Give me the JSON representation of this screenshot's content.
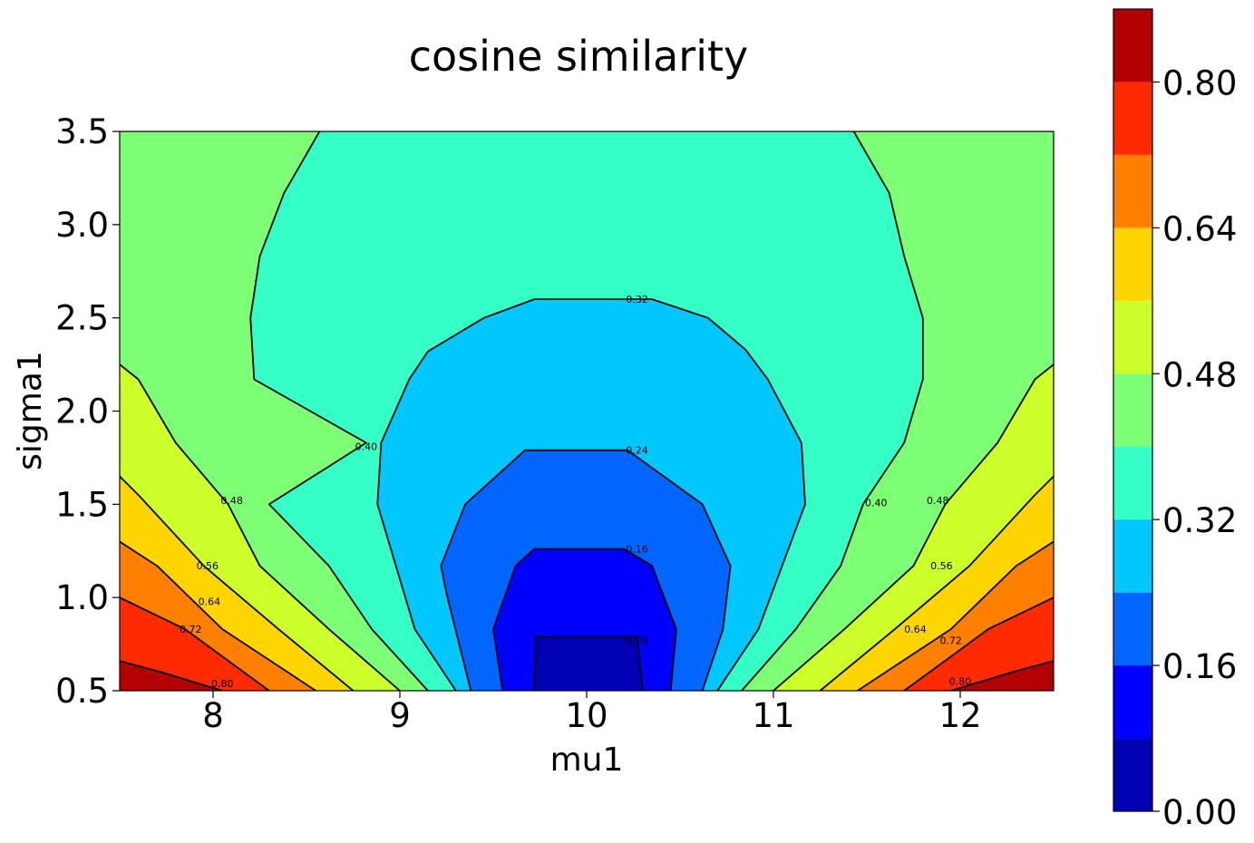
{
  "chart_data": {
    "type": "contourf",
    "title": "cosine similarity",
    "xlabel": "mu1",
    "ylabel": "sigma1",
    "xlim": [
      7.5,
      12.5
    ],
    "ylim": [
      0.5,
      3.5
    ],
    "x_ticks": [
      "8",
      "9",
      "10",
      "11",
      "12"
    ],
    "y_ticks": [
      "0.5",
      "1.0",
      "1.5",
      "2.0",
      "2.5",
      "3.0",
      "3.5"
    ],
    "levels": [
      0.0,
      0.08,
      0.16,
      0.24,
      0.32,
      0.4,
      0.48,
      0.56,
      0.64,
      0.72,
      0.8,
      0.88
    ],
    "level_colors": [
      "#0000b3",
      "#0000ff",
      "#0066ff",
      "#00c8ff",
      "#33ffc7",
      "#7cff74",
      "#ccff2a",
      "#ffd500",
      "#ff7f00",
      "#ff2a00",
      "#b30000"
    ],
    "colorbar_ticks": [
      "0.00",
      "0.16",
      "0.32",
      "0.48",
      "0.64",
      "0.80"
    ],
    "contour_labels": [
      {
        "text": "0.32",
        "x": 10.27,
        "y": 2.6
      },
      {
        "text": "0.24",
        "x": 10.27,
        "y": 1.79
      },
      {
        "text": "0.16",
        "x": 10.27,
        "y": 1.26
      },
      {
        "text": "0.08",
        "x": 10.27,
        "y": 0.77
      },
      {
        "text": "0.40",
        "x": 8.82,
        "y": 1.81
      },
      {
        "text": "0.48",
        "x": 8.1,
        "y": 1.52
      },
      {
        "text": "0.56",
        "x": 7.97,
        "y": 1.17
      },
      {
        "text": "0.64",
        "x": 7.98,
        "y": 0.98
      },
      {
        "text": "0.72",
        "x": 7.88,
        "y": 0.83
      },
      {
        "text": "0.80",
        "x": 8.05,
        "y": 0.54
      },
      {
        "text": "0.40",
        "x": 11.55,
        "y": 1.51
      },
      {
        "text": "0.48",
        "x": 11.88,
        "y": 1.52
      },
      {
        "text": "0.56",
        "x": 11.9,
        "y": 1.17
      },
      {
        "text": "0.64",
        "x": 11.76,
        "y": 0.83
      },
      {
        "text": "0.72",
        "x": 11.95,
        "y": 0.77
      },
      {
        "text": "0.80",
        "x": 12.0,
        "y": 0.55
      }
    ],
    "contours": [
      {
        "level": 0.08,
        "points": [
          [
            9.72,
            0.5
          ],
          [
            9.73,
            0.79
          ],
          [
            10.27,
            0.79
          ],
          [
            10.3,
            0.5
          ]
        ]
      },
      {
        "level": 0.16,
        "points": [
          [
            9.55,
            0.5
          ],
          [
            9.5,
            0.83
          ],
          [
            9.62,
            1.17
          ],
          [
            9.72,
            1.26
          ],
          [
            10.2,
            1.26
          ],
          [
            10.35,
            1.17
          ],
          [
            10.48,
            0.83
          ],
          [
            10.45,
            0.5
          ]
        ]
      },
      {
        "level": 0.24,
        "points": [
          [
            9.38,
            0.5
          ],
          [
            9.25,
            1.02
          ],
          [
            9.22,
            1.17
          ],
          [
            9.35,
            1.5
          ],
          [
            9.67,
            1.79
          ],
          [
            10.22,
            1.79
          ],
          [
            10.62,
            1.5
          ],
          [
            10.77,
            1.17
          ],
          [
            10.73,
            0.83
          ],
          [
            10.62,
            0.5
          ]
        ]
      },
      {
        "level": 0.32,
        "points": [
          [
            9.3,
            0.5
          ],
          [
            9.08,
            0.83
          ],
          [
            8.88,
            1.5
          ],
          [
            8.9,
            1.83
          ],
          [
            9.05,
            2.17
          ],
          [
            9.15,
            2.32
          ],
          [
            9.45,
            2.5
          ],
          [
            9.72,
            2.6
          ],
          [
            10.35,
            2.6
          ],
          [
            10.65,
            2.5
          ],
          [
            10.85,
            2.33
          ],
          [
            10.97,
            2.17
          ],
          [
            11.15,
            1.83
          ],
          [
            11.17,
            1.5
          ],
          [
            10.92,
            0.83
          ],
          [
            10.7,
            0.5
          ]
        ]
      },
      {
        "level": 0.4,
        "points": [
          [
            9.15,
            0.5
          ],
          [
            8.85,
            0.83
          ],
          [
            8.62,
            1.17
          ],
          [
            8.3,
            1.5
          ],
          [
            8.82,
            1.83
          ],
          [
            8.22,
            2.17
          ],
          [
            8.2,
            2.5
          ],
          [
            8.25,
            2.83
          ],
          [
            8.38,
            3.17
          ],
          [
            8.57,
            3.5
          ]
        ]
      },
      {
        "level": 0.4,
        "points": [
          [
            10.83,
            0.5
          ],
          [
            11.12,
            0.83
          ],
          [
            11.36,
            1.17
          ],
          [
            11.48,
            1.5
          ],
          [
            11.7,
            1.83
          ],
          [
            11.8,
            2.17
          ],
          [
            11.8,
            2.5
          ],
          [
            11.7,
            2.83
          ],
          [
            11.62,
            3.17
          ],
          [
            11.43,
            3.5
          ]
        ]
      },
      {
        "level": 0.48,
        "points": [
          [
            9.0,
            0.5
          ],
          [
            8.62,
            0.83
          ],
          [
            8.25,
            1.17
          ],
          [
            8.08,
            1.5
          ],
          [
            7.8,
            1.83
          ],
          [
            7.6,
            2.17
          ],
          [
            7.5,
            2.25
          ]
        ]
      },
      {
        "level": 0.48,
        "points": [
          [
            11.0,
            0.5
          ],
          [
            11.38,
            0.83
          ],
          [
            11.75,
            1.17
          ],
          [
            11.92,
            1.5
          ],
          [
            12.2,
            1.83
          ],
          [
            12.4,
            2.17
          ],
          [
            12.5,
            2.25
          ]
        ]
      },
      {
        "level": 0.56,
        "points": [
          [
            8.75,
            0.5
          ],
          [
            8.35,
            0.83
          ],
          [
            7.95,
            1.17
          ],
          [
            7.6,
            1.55
          ],
          [
            7.5,
            1.65
          ]
        ]
      },
      {
        "level": 0.56,
        "points": [
          [
            11.25,
            0.5
          ],
          [
            11.65,
            0.83
          ],
          [
            12.05,
            1.17
          ],
          [
            12.4,
            1.55
          ],
          [
            12.5,
            1.65
          ]
        ]
      },
      {
        "level": 0.64,
        "points": [
          [
            8.55,
            0.5
          ],
          [
            8.05,
            0.83
          ],
          [
            7.7,
            1.17
          ],
          [
            7.5,
            1.3
          ]
        ]
      },
      {
        "level": 0.64,
        "points": [
          [
            11.45,
            0.5
          ],
          [
            11.95,
            0.83
          ],
          [
            12.3,
            1.17
          ],
          [
            12.5,
            1.3
          ]
        ]
      },
      {
        "level": 0.72,
        "points": [
          [
            8.3,
            0.5
          ],
          [
            7.85,
            0.83
          ],
          [
            7.5,
            1.0
          ]
        ]
      },
      {
        "level": 0.72,
        "points": [
          [
            11.7,
            0.5
          ],
          [
            12.15,
            0.83
          ],
          [
            12.5,
            1.0
          ]
        ]
      },
      {
        "level": 0.8,
        "points": [
          [
            8.05,
            0.5
          ],
          [
            7.72,
            0.6
          ],
          [
            7.5,
            0.66
          ]
        ]
      },
      {
        "level": 0.8,
        "points": [
          [
            11.95,
            0.5
          ],
          [
            12.28,
            0.6
          ],
          [
            12.5,
            0.66
          ]
        ]
      }
    ]
  }
}
